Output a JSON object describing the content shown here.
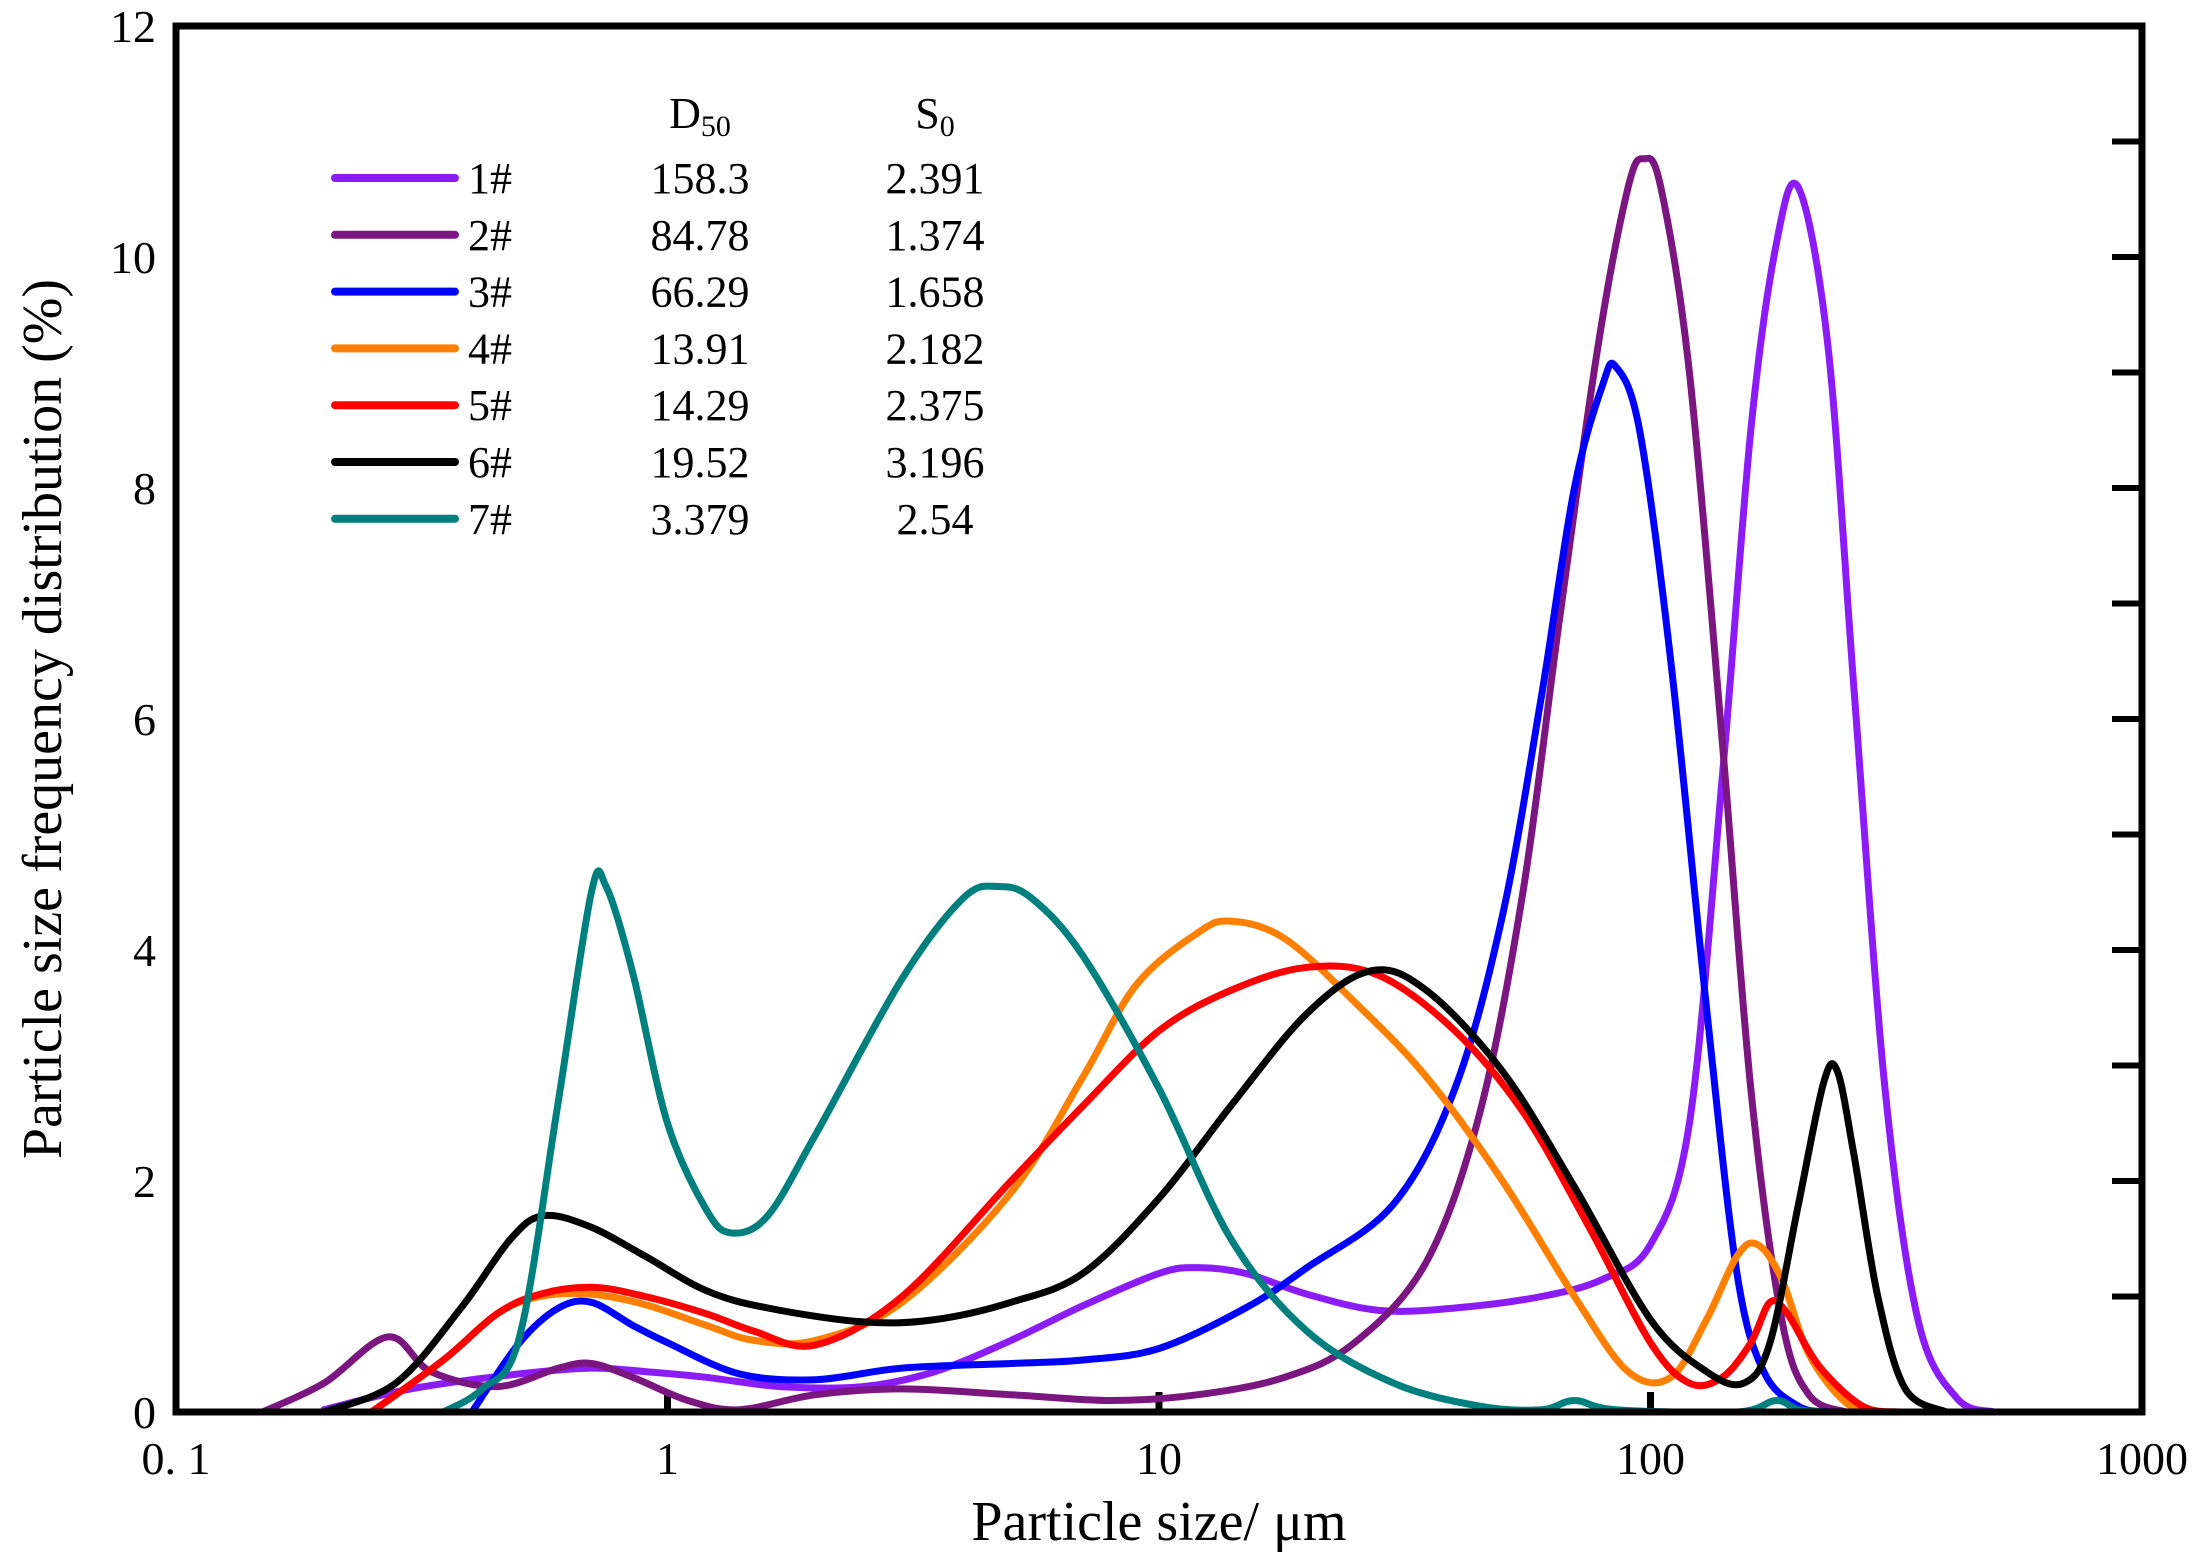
{
  "chart_data": {
    "type": "line",
    "title": "",
    "xlabel": "Particle size/ μm",
    "ylabel": "Particle size frequency distribution (%)",
    "xscale": "log",
    "xlim": [
      0.1,
      1000
    ],
    "ylim": [
      0,
      12
    ],
    "x_ticks": [
      0.1,
      1,
      10,
      100,
      1000
    ],
    "x_tick_labels": [
      "0. 1",
      "1",
      "10",
      "100",
      "1000"
    ],
    "y_ticks": [
      0,
      2,
      4,
      6,
      8,
      10,
      12
    ],
    "y_tick_labels": [
      "0",
      "2",
      "4",
      "6",
      "8",
      "10",
      "12"
    ],
    "legend_position": "top-left",
    "table_headers": {
      "d50": {
        "main": "D",
        "sub": "50"
      },
      "s0": {
        "main": "S",
        "sub": "0"
      }
    },
    "series": [
      {
        "name": "1#",
        "color": "#8B1CF7",
        "d50": "158.3",
        "s0": "2.391",
        "points": [
          [
            0.2,
            0.02
          ],
          [
            0.3,
            0.2
          ],
          [
            0.5,
            0.33
          ],
          [
            0.7,
            0.38
          ],
          [
            0.9,
            0.35
          ],
          [
            1.2,
            0.3
          ],
          [
            1.7,
            0.22
          ],
          [
            2.5,
            0.22
          ],
          [
            3.5,
            0.35
          ],
          [
            5,
            0.62
          ],
          [
            7,
            0.92
          ],
          [
            10,
            1.2
          ],
          [
            12,
            1.25
          ],
          [
            15,
            1.2
          ],
          [
            20,
            1.02
          ],
          [
            28,
            0.88
          ],
          [
            40,
            0.9
          ],
          [
            60,
            1.0
          ],
          [
            80,
            1.15
          ],
          [
            100,
            1.45
          ],
          [
            120,
            2.5
          ],
          [
            140,
            5.5
          ],
          [
            160,
            8.5
          ],
          [
            180,
            10.1
          ],
          [
            200,
            10.6
          ],
          [
            230,
            9.2
          ],
          [
            260,
            6.2
          ],
          [
            300,
            2.8
          ],
          [
            350,
            0.8
          ],
          [
            420,
            0.12
          ],
          [
            500,
            0
          ]
        ]
      },
      {
        "name": "2#",
        "color": "#7B1680",
        "d50": "84.78",
        "s0": "1.374",
        "points": [
          [
            0.15,
            0
          ],
          [
            0.2,
            0.25
          ],
          [
            0.27,
            0.65
          ],
          [
            0.33,
            0.35
          ],
          [
            0.45,
            0.22
          ],
          [
            0.6,
            0.38
          ],
          [
            0.7,
            0.42
          ],
          [
            0.85,
            0.3
          ],
          [
            1.1,
            0.1
          ],
          [
            1.4,
            0.02
          ],
          [
            2,
            0.15
          ],
          [
            3,
            0.2
          ],
          [
            5,
            0.15
          ],
          [
            8,
            0.1
          ],
          [
            12,
            0.15
          ],
          [
            18,
            0.3
          ],
          [
            25,
            0.6
          ],
          [
            35,
            1.3
          ],
          [
            45,
            2.6
          ],
          [
            55,
            4.5
          ],
          [
            65,
            6.8
          ],
          [
            78,
            9.2
          ],
          [
            90,
            10.6
          ],
          [
            97,
            10.85
          ],
          [
            105,
            10.6
          ],
          [
            120,
            9.0
          ],
          [
            140,
            5.8
          ],
          [
            160,
            2.8
          ],
          [
            185,
            0.8
          ],
          [
            210,
            0.15
          ],
          [
            250,
            0
          ]
        ]
      },
      {
        "name": "3#",
        "color": "#0000FF",
        "d50": "66.29",
        "s0": "1.658",
        "points": [
          [
            0.4,
            0
          ],
          [
            0.5,
            0.6
          ],
          [
            0.6,
            0.9
          ],
          [
            0.7,
            0.95
          ],
          [
            0.85,
            0.75
          ],
          [
            1,
            0.6
          ],
          [
            1.4,
            0.33
          ],
          [
            2,
            0.28
          ],
          [
            3,
            0.38
          ],
          [
            5,
            0.42
          ],
          [
            7,
            0.45
          ],
          [
            10,
            0.55
          ],
          [
            15,
            0.9
          ],
          [
            20,
            1.25
          ],
          [
            30,
            1.8
          ],
          [
            40,
            2.8
          ],
          [
            50,
            4.3
          ],
          [
            60,
            6.2
          ],
          [
            70,
            8.0
          ],
          [
            80,
            8.9
          ],
          [
            85,
            9.05
          ],
          [
            95,
            8.5
          ],
          [
            110,
            6.5
          ],
          [
            130,
            3.5
          ],
          [
            150,
            1.2
          ],
          [
            170,
            0.35
          ],
          [
            200,
            0.05
          ],
          [
            230,
            0
          ]
        ]
      },
      {
        "name": "4#",
        "color": "#FF8000",
        "d50": "13.91",
        "s0": "2.182",
        "points": [
          [
            0.25,
            0
          ],
          [
            0.35,
            0.45
          ],
          [
            0.45,
            0.85
          ],
          [
            0.55,
            1.0
          ],
          [
            0.7,
            1.02
          ],
          [
            0.9,
            0.93
          ],
          [
            1.2,
            0.75
          ],
          [
            1.5,
            0.62
          ],
          [
            2,
            0.62
          ],
          [
            3,
            0.95
          ],
          [
            5,
            1.9
          ],
          [
            7,
            2.9
          ],
          [
            9,
            3.7
          ],
          [
            12,
            4.15
          ],
          [
            14,
            4.25
          ],
          [
            18,
            4.1
          ],
          [
            25,
            3.55
          ],
          [
            35,
            2.9
          ],
          [
            50,
            2.0
          ],
          [
            70,
            1.0
          ],
          [
            90,
            0.35
          ],
          [
            110,
            0.3
          ],
          [
            130,
            0.8
          ],
          [
            150,
            1.35
          ],
          [
            165,
            1.45
          ],
          [
            185,
            1.15
          ],
          [
            210,
            0.5
          ],
          [
            250,
            0.08
          ],
          [
            290,
            0
          ]
        ]
      },
      {
        "name": "5#",
        "color": "#FF0000",
        "d50": "14.29",
        "s0": "2.375",
        "points": [
          [
            0.25,
            0
          ],
          [
            0.35,
            0.45
          ],
          [
            0.45,
            0.85
          ],
          [
            0.55,
            1.02
          ],
          [
            0.7,
            1.08
          ],
          [
            0.9,
            1.0
          ],
          [
            1.2,
            0.85
          ],
          [
            1.5,
            0.7
          ],
          [
            2,
            0.58
          ],
          [
            3,
            1.0
          ],
          [
            5,
            2.0
          ],
          [
            7,
            2.65
          ],
          [
            10,
            3.3
          ],
          [
            14,
            3.65
          ],
          [
            20,
            3.85
          ],
          [
            28,
            3.78
          ],
          [
            40,
            3.3
          ],
          [
            55,
            2.6
          ],
          [
            75,
            1.6
          ],
          [
            100,
            0.6
          ],
          [
            120,
            0.25
          ],
          [
            140,
            0.3
          ],
          [
            160,
            0.6
          ],
          [
            175,
            0.95
          ],
          [
            190,
            0.85
          ],
          [
            220,
            0.4
          ],
          [
            270,
            0.05
          ],
          [
            320,
            0
          ]
        ]
      },
      {
        "name": "6#",
        "color": "#000000",
        "d50": "19.52",
        "s0": "3.196",
        "points": [
          [
            0.2,
            0
          ],
          [
            0.28,
            0.25
          ],
          [
            0.38,
            0.9
          ],
          [
            0.48,
            1.5
          ],
          [
            0.56,
            1.7
          ],
          [
            0.7,
            1.6
          ],
          [
            0.9,
            1.35
          ],
          [
            1.2,
            1.05
          ],
          [
            1.6,
            0.9
          ],
          [
            2.5,
            0.78
          ],
          [
            3.5,
            0.8
          ],
          [
            5,
            0.95
          ],
          [
            7,
            1.2
          ],
          [
            10,
            1.85
          ],
          [
            14,
            2.65
          ],
          [
            20,
            3.45
          ],
          [
            27,
            3.82
          ],
          [
            35,
            3.65
          ],
          [
            50,
            2.95
          ],
          [
            70,
            1.95
          ],
          [
            100,
            0.8
          ],
          [
            130,
            0.35
          ],
          [
            155,
            0.25
          ],
          [
            175,
            0.6
          ],
          [
            200,
            1.8
          ],
          [
            225,
            2.85
          ],
          [
            240,
            2.95
          ],
          [
            260,
            2.2
          ],
          [
            290,
            1.0
          ],
          [
            330,
            0.2
          ],
          [
            400,
            0
          ]
        ]
      },
      {
        "name": "7#",
        "color": "#007F7F",
        "d50": "3.379",
        "s0": "2.54",
        "points": [
          [
            0.35,
            0
          ],
          [
            0.42,
            0.2
          ],
          [
            0.5,
            0.65
          ],
          [
            0.6,
            2.7
          ],
          [
            0.7,
            4.5
          ],
          [
            0.75,
            4.55
          ],
          [
            0.85,
            3.8
          ],
          [
            1.0,
            2.5
          ],
          [
            1.2,
            1.75
          ],
          [
            1.35,
            1.55
          ],
          [
            1.6,
            1.7
          ],
          [
            2,
            2.4
          ],
          [
            3,
            3.75
          ],
          [
            4,
            4.45
          ],
          [
            4.7,
            4.55
          ],
          [
            5.5,
            4.45
          ],
          [
            7,
            3.95
          ],
          [
            10,
            2.8
          ],
          [
            14,
            1.5
          ],
          [
            20,
            0.7
          ],
          [
            30,
            0.25
          ],
          [
            45,
            0.05
          ],
          [
            60,
            0.02
          ],
          [
            70,
            0.1
          ],
          [
            85,
            0.02
          ],
          [
            150,
            0
          ],
          [
            180,
            0.1
          ],
          [
            200,
            0.02
          ],
          [
            230,
            0
          ]
        ]
      }
    ]
  }
}
